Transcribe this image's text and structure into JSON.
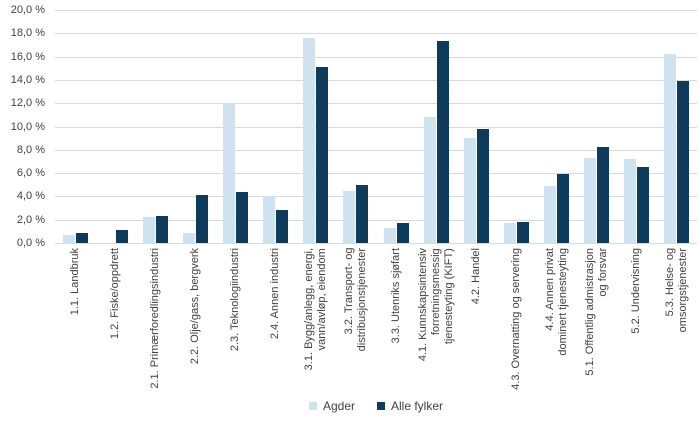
{
  "chart_data": {
    "type": "bar",
    "title": "",
    "xlabel": "",
    "ylabel": "",
    "ylim": [
      0,
      20
    ],
    "grid": true,
    "legend_position": "bottom",
    "categories": [
      "1.1. Landbruk",
      "1.2. Fiske/oppdrett",
      "2.1. Primærforedlingsindustri",
      "2.2. Olje/gass, bergverk",
      "2.3. Teknologiindustri",
      "2.4. Annen industri",
      "3.1. Bygg/anlegg, energi,\nvann/avløp, eiendom",
      "3.2. Transport- og\ndistribusjonstjenester",
      "3.3. Utenriks sjøfart",
      "4.1. Kunnskapsintensiv\nforretningsmessig\ntjenesteyting (KIFT)",
      "4.2. Handel",
      "4.3. Overnatting og servering",
      "4.4. Annen privat\ndominert tjenesteyting",
      "5.1. Offentlig admistrasjon\nog forsvar",
      "5.2. Undervisning",
      "5.3. Helse- og\nomsorgstjenester"
    ],
    "series": [
      {
        "name": "Agder",
        "color": "#cfe2f0",
        "values": [
          0.7,
          0.0,
          2.2,
          0.9,
          12.0,
          4.0,
          17.6,
          4.5,
          1.3,
          10.8,
          9.0,
          1.7,
          4.9,
          7.3,
          7.2,
          16.2
        ]
      },
      {
        "name": "Alle fylker",
        "color": "#0e3a5c",
        "values": [
          0.9,
          1.1,
          2.3,
          4.1,
          4.4,
          2.8,
          15.1,
          5.0,
          1.7,
          17.3,
          9.8,
          1.8,
          5.9,
          8.2,
          6.5,
          13.9
        ]
      }
    ],
    "y_ticks": [
      {
        "value": 0,
        "label": "0,0 %"
      },
      {
        "value": 2,
        "label": "2,0 %"
      },
      {
        "value": 4,
        "label": "4,0 %"
      },
      {
        "value": 6,
        "label": "6,0 %"
      },
      {
        "value": 8,
        "label": "8,0 %"
      },
      {
        "value": 10,
        "label": "10,0 %"
      },
      {
        "value": 12,
        "label": "12,0 %"
      },
      {
        "value": 14,
        "label": "14,0 %"
      },
      {
        "value": 16,
        "label": "16,0 %"
      },
      {
        "value": 18,
        "label": "18,0 %"
      },
      {
        "value": 20,
        "label": "20,0 %"
      }
    ],
    "colors": {
      "gridline": "#d9d9d9",
      "text": "#404040",
      "background": "#ffffff"
    }
  }
}
